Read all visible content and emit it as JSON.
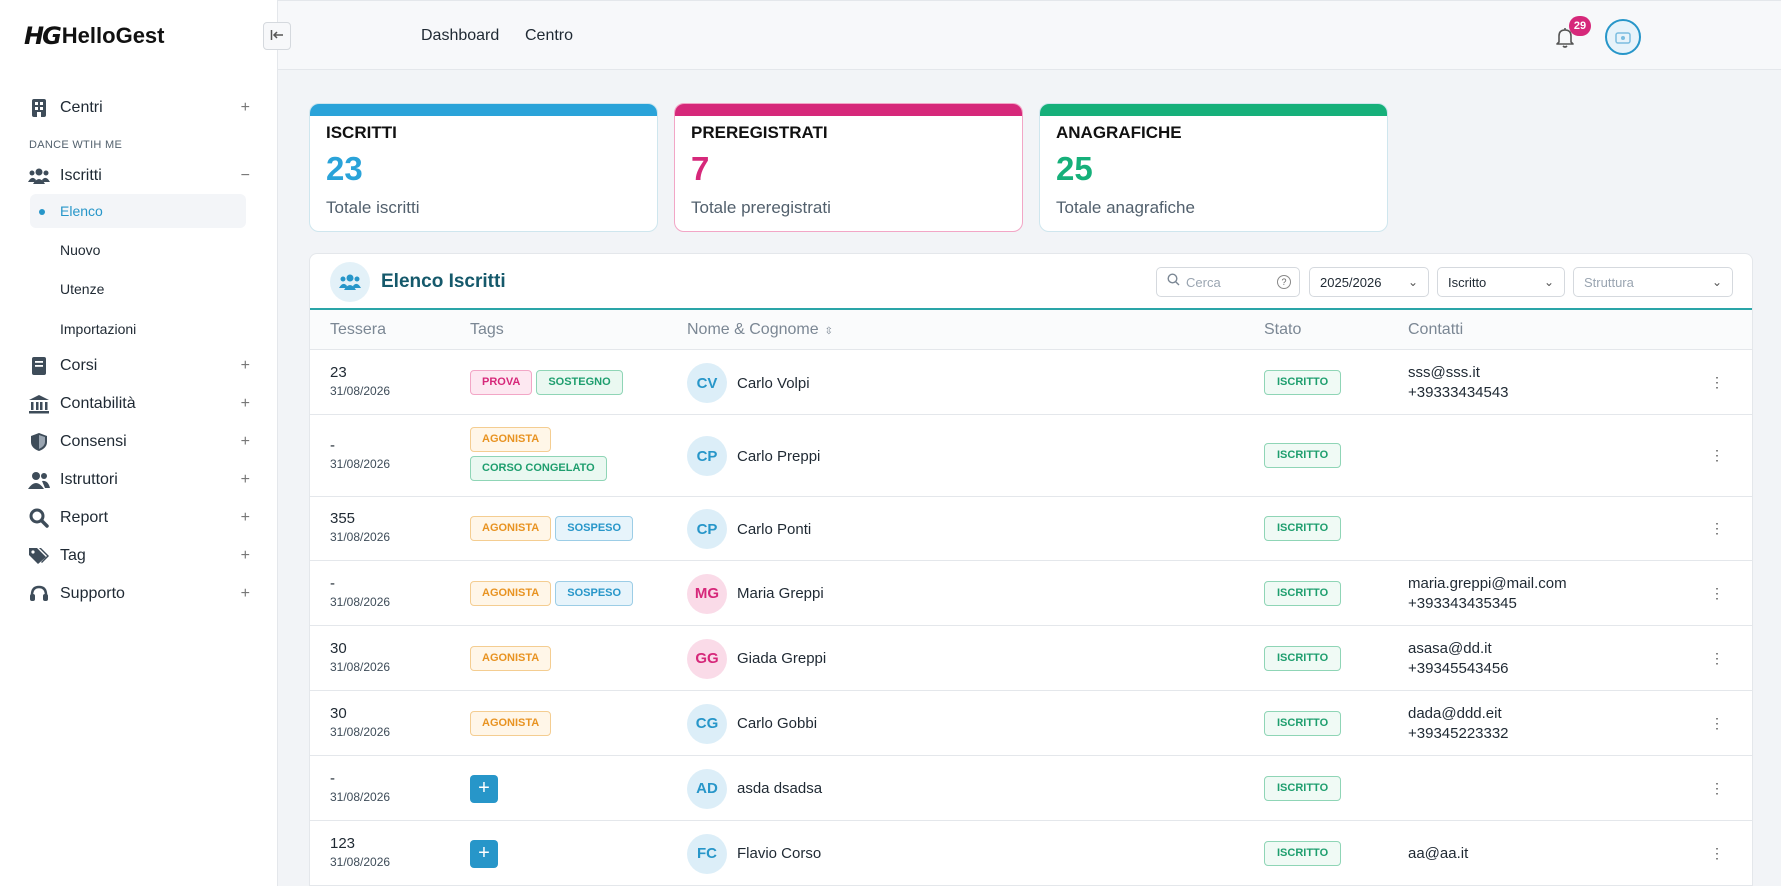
{
  "app": {
    "logo_mark": "HG",
    "logo_text": "HelloGest"
  },
  "sidebar": {
    "section_label": "DANCE WTIH ME",
    "items": [
      {
        "label": "Centri",
        "toggle": "+"
      },
      {
        "label": "Iscritti",
        "toggle": "−"
      },
      {
        "label": "Corsi",
        "toggle": "+"
      },
      {
        "label": "Contabilità",
        "toggle": "+"
      },
      {
        "label": "Consensi",
        "toggle": "+"
      },
      {
        "label": "Istruttori",
        "toggle": "+"
      },
      {
        "label": "Report",
        "toggle": "+"
      },
      {
        "label": "Tag",
        "toggle": "+"
      },
      {
        "label": "Supporto",
        "toggle": "+"
      }
    ],
    "subitems": [
      "Elenco",
      "Nuovo",
      "Utenze",
      "Importazioni"
    ]
  },
  "topbar": {
    "links": [
      "Dashboard",
      "Centro"
    ],
    "notification_count": "29"
  },
  "stats": [
    {
      "title": "ISCRITTI",
      "value": "23",
      "desc": "Totale iscritti",
      "color": "#2aa3d9"
    },
    {
      "title": "PREREGISTRATI",
      "value": "7",
      "desc": "Totale preregistrati",
      "color": "#d6287a"
    },
    {
      "title": "ANAGRAFICHE",
      "value": "25",
      "desc": "Totale anagrafiche",
      "color": "#16b07a"
    }
  ],
  "panel": {
    "title": "Elenco Iscritti",
    "search_placeholder": "Cerca",
    "year_select": "2025/2026",
    "status_select": "Iscritto",
    "structure_select": "Struttura"
  },
  "table": {
    "headers": {
      "tessera": "Tessera",
      "tags": "Tags",
      "nome": "Nome & Cognome",
      "stato": "Stato",
      "contatti": "Contatti"
    },
    "rows": [
      {
        "tessera": "23",
        "date": "31/08/2026",
        "tags": [
          "PROVA",
          "SOSTEGNO"
        ],
        "initials": "CV",
        "name": "Carlo Volpi",
        "stato": "ISCRITTO",
        "email": "sss@sss.it",
        "phone": "+39333434543"
      },
      {
        "tessera": "-",
        "date": "31/08/2026",
        "tags": [
          "AGONISTA",
          "CORSO CONGELATO"
        ],
        "initials": "CP",
        "name": "Carlo Preppi",
        "stato": "ISCRITTO",
        "email": "",
        "phone": ""
      },
      {
        "tessera": "355",
        "date": "31/08/2026",
        "tags": [
          "AGONISTA",
          "SOSPESO"
        ],
        "initials": "CP",
        "name": "Carlo Ponti",
        "stato": "ISCRITTO",
        "email": "",
        "phone": ""
      },
      {
        "tessera": "-",
        "date": "31/08/2026",
        "tags": [
          "AGONISTA",
          "SOSPESO"
        ],
        "initials": "MG",
        "name": "Maria Greppi",
        "stato": "ISCRITTO",
        "email": "maria.greppi@mail.com",
        "phone": "+393343435345"
      },
      {
        "tessera": "30",
        "date": "31/08/2026",
        "tags": [
          "AGONISTA"
        ],
        "initials": "GG",
        "name": "Giada Greppi",
        "stato": "ISCRITTO",
        "email": "asasa@dd.it",
        "phone": "+39345543456"
      },
      {
        "tessera": "30",
        "date": "31/08/2026",
        "tags": [
          "AGONISTA"
        ],
        "initials": "CG",
        "name": "Carlo Gobbi",
        "stato": "ISCRITTO",
        "email": "dada@ddd.eit",
        "phone": "+39345223332"
      },
      {
        "tessera": "-",
        "date": "31/08/2026",
        "tags": [],
        "initials": "AD",
        "name": "asda dsadsa",
        "stato": "ISCRITTO",
        "email": "",
        "phone": ""
      },
      {
        "tessera": "123",
        "date": "31/08/2026",
        "tags": [],
        "initials": "FC",
        "name": "Flavio Corso",
        "stato": "ISCRITTO",
        "email": "aa@aa.it",
        "phone": ""
      }
    ]
  }
}
